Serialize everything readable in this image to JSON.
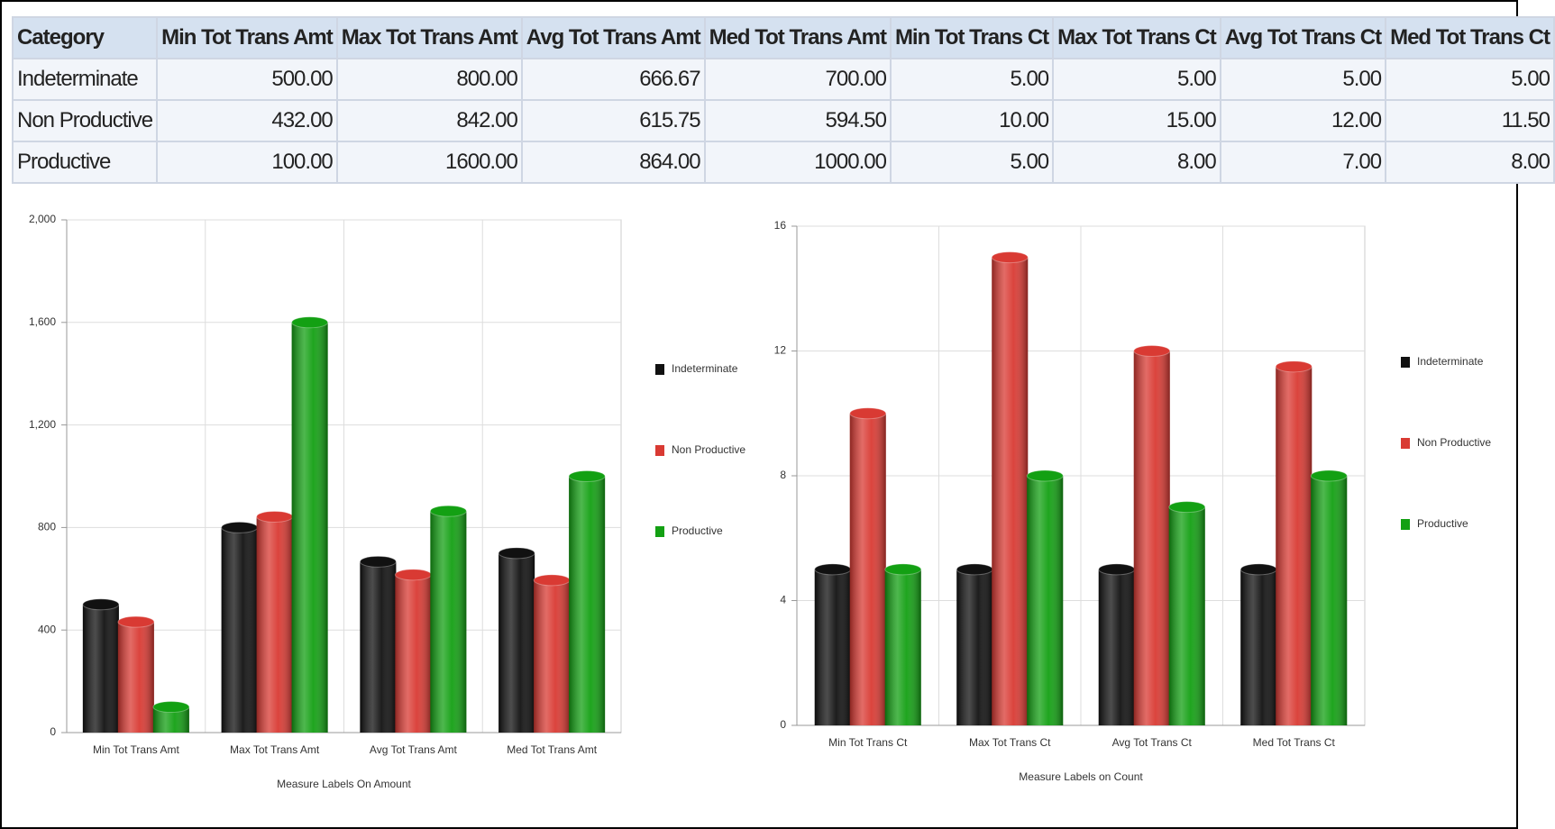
{
  "table": {
    "columns": [
      "Category",
      "Min Tot Trans Amt",
      "Max Tot Trans Amt",
      "Avg Tot Trans Amt",
      "Med Tot Trans Amt",
      "Min Tot Trans Ct",
      "Max Tot Trans Ct",
      "Avg Tot Trans Ct",
      "Med Tot Trans Ct"
    ],
    "rows": [
      [
        "Indeterminate",
        "500.00",
        "800.00",
        "666.67",
        "700.00",
        "5.00",
        "5.00",
        "5.00",
        "5.00"
      ],
      [
        "Non Productive",
        "432.00",
        "842.00",
        "615.75",
        "594.50",
        "10.00",
        "15.00",
        "12.00",
        "11.50"
      ],
      [
        "Productive",
        "100.00",
        "1600.00",
        "864.00",
        "1000.00",
        "5.00",
        "8.00",
        "7.00",
        "8.00"
      ]
    ]
  },
  "chart_data": [
    {
      "type": "bar",
      "x_label": "Measure Labels On Amount",
      "categories": [
        "Min Tot Trans Amt",
        "Max Tot Trans Amt",
        "Avg Tot Trans Amt",
        "Med Tot Trans Amt"
      ],
      "series": [
        {
          "name": "Indeterminate",
          "color": "#111111",
          "values": [
            500,
            800,
            666.67,
            700
          ]
        },
        {
          "name": "Non Productive",
          "color": "#d93a33",
          "values": [
            432,
            842,
            615.75,
            594.5
          ]
        },
        {
          "name": "Productive",
          "color": "#13a013",
          "values": [
            100,
            1600,
            864,
            1000
          ]
        }
      ],
      "ylim": [
        0,
        2000
      ],
      "yticks": [
        0,
        400,
        800,
        {
          "value": 1200,
          "label": "1,200"
        },
        {
          "value": 1600,
          "label": "1,600"
        },
        {
          "value": 2000,
          "label": "2,000"
        }
      ],
      "grid": true,
      "legend": "right"
    },
    {
      "type": "bar",
      "x_label": "Measure Labels on Count",
      "categories": [
        "Min Tot Trans Ct",
        "Max Tot Trans Ct",
        "Avg Tot Trans Ct",
        "Med Tot Trans Ct"
      ],
      "series": [
        {
          "name": "Indeterminate",
          "color": "#111111",
          "values": [
            5,
            5,
            5,
            5
          ]
        },
        {
          "name": "Non Productive",
          "color": "#d93a33",
          "values": [
            10,
            15,
            12,
            11.5
          ]
        },
        {
          "name": "Productive",
          "color": "#13a013",
          "values": [
            5,
            8,
            7,
            8
          ]
        }
      ],
      "ylim": [
        0,
        16
      ],
      "yticks": [
        0,
        4,
        8,
        12,
        16
      ],
      "grid": true,
      "legend": "right"
    }
  ]
}
